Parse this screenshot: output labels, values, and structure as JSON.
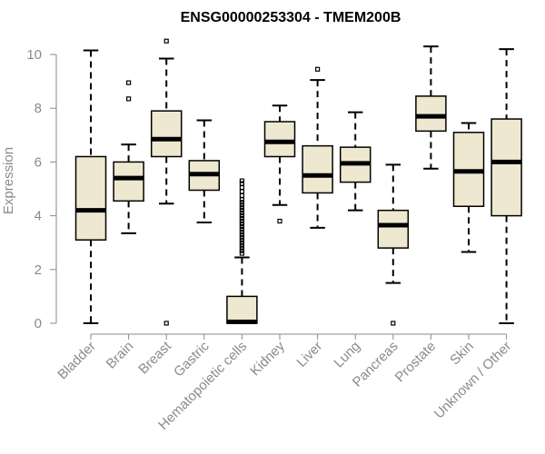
{
  "chart_data": {
    "type": "box",
    "title": "ENSG00000253304 - TMEM200B",
    "ylabel": "Expression",
    "xlabel": "",
    "ylim": [
      0,
      10.5
    ],
    "yticks": [
      0,
      2,
      4,
      6,
      8,
      10
    ],
    "box_fill": "#efe8d0",
    "categories": [
      "Bladder",
      "Brain",
      "Breast",
      "Gastric",
      "Hematopoietic cells",
      "Kidney",
      "Liver",
      "Lung",
      "Pancreas",
      "Prostate",
      "Skin",
      "Unknown / Other"
    ],
    "boxes": [
      {
        "min": 0.0,
        "q1": 3.1,
        "median": 4.2,
        "q3": 6.2,
        "max": 10.15,
        "outliers": []
      },
      {
        "min": 3.35,
        "q1": 4.55,
        "median": 5.4,
        "q3": 6.0,
        "max": 6.65,
        "outliers": [
          8.35,
          8.95
        ]
      },
      {
        "min": 4.45,
        "q1": 6.2,
        "median": 6.85,
        "q3": 7.9,
        "max": 9.85,
        "outliers": [
          0.0,
          10.5
        ]
      },
      {
        "min": 3.75,
        "q1": 4.95,
        "median": 5.55,
        "q3": 6.05,
        "max": 7.55,
        "outliers": []
      },
      {
        "min": 0.0,
        "q1": 0.0,
        "median": 0.05,
        "q3": 1.0,
        "max": 2.45,
        "outliers": [
          2.6,
          2.7,
          2.8,
          2.9,
          3.0,
          3.1,
          3.2,
          3.3,
          3.4,
          3.5,
          3.6,
          3.7,
          3.8,
          3.9,
          4.0,
          4.1,
          4.2,
          4.3,
          4.4,
          4.5,
          4.6,
          4.75,
          4.9,
          5.05,
          5.2,
          5.3
        ]
      },
      {
        "min": 4.4,
        "q1": 6.2,
        "median": 6.75,
        "q3": 7.5,
        "max": 8.1,
        "outliers": [
          3.8
        ]
      },
      {
        "min": 3.55,
        "q1": 4.85,
        "median": 5.5,
        "q3": 6.6,
        "max": 9.05,
        "outliers": [
          9.45
        ]
      },
      {
        "min": 4.2,
        "q1": 5.25,
        "median": 5.95,
        "q3": 6.55,
        "max": 7.85,
        "outliers": []
      },
      {
        "min": 1.5,
        "q1": 2.8,
        "median": 3.65,
        "q3": 4.2,
        "max": 5.9,
        "outliers": [
          0.0
        ]
      },
      {
        "min": 5.75,
        "q1": 7.15,
        "median": 7.7,
        "q3": 8.45,
        "max": 10.3,
        "outliers": []
      },
      {
        "min": 2.65,
        "q1": 4.35,
        "median": 5.65,
        "q3": 7.1,
        "max": 7.45,
        "outliers": []
      },
      {
        "min": 0.0,
        "q1": 4.0,
        "median": 6.0,
        "q3": 7.6,
        "max": 10.2,
        "outliers": []
      }
    ]
  }
}
